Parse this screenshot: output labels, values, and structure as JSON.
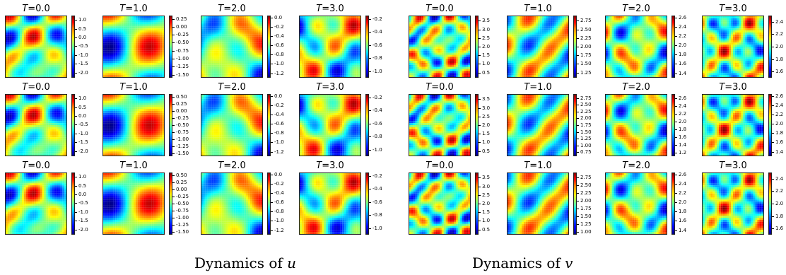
{
  "figure": {
    "captions": [
      {
        "text": "Dynamics of",
        "variable": "u"
      },
      {
        "text": "Dynamics of",
        "variable": "v"
      }
    ],
    "time_var": "T",
    "groups": [
      {
        "variable": "u",
        "rows": [
          [
            {
              "time": "0.0",
              "ticks": [
                "1.0",
                "0.5",
                "0.0",
                "-0.5",
                "-1.0",
                "-1.5",
                "-2.0"
              ],
              "range": [
                -2.3,
                1.25
              ],
              "pattern": 0
            },
            {
              "time": "1.0",
              "ticks": [
                "0.25",
                "0.00",
                "-0.25",
                "-0.50",
                "-0.75",
                "-1.00",
                "-1.25",
                "-1.50"
              ],
              "range": [
                -1.6,
                0.35
              ],
              "pattern": 1
            },
            {
              "time": "2.0",
              "ticks": [
                "0.0",
                "-0.2",
                "-0.4",
                "-0.6",
                "-0.8",
                "-1.0",
                "-1.2"
              ],
              "range": [
                -1.3,
                0.05
              ],
              "pattern": 2
            },
            {
              "time": "3.0",
              "ticks": [
                "-0.2",
                "-0.4",
                "-0.6",
                "-0.8",
                "-1.0"
              ],
              "range": [
                -1.1,
                -0.15
              ],
              "pattern": 3
            }
          ],
          [
            {
              "time": "0.0",
              "ticks": [
                "1.0",
                "0.5",
                "0.0",
                "-0.5",
                "-1.0",
                "-1.5",
                "-2.0"
              ],
              "range": [
                -2.3,
                1.25
              ],
              "pattern": 0
            },
            {
              "time": "1.0",
              "ticks": [
                "0.50",
                "0.25",
                "0.00",
                "-0.25",
                "-0.50",
                "-0.75",
                "-1.00",
                "-1.25",
                "-1.50"
              ],
              "range": [
                -1.6,
                0.6
              ],
              "pattern": 1
            },
            {
              "time": "2.0",
              "ticks": [
                "0.0",
                "-0.2",
                "-0.4",
                "-0.6",
                "-0.8",
                "-1.0",
                "-1.2"
              ],
              "range": [
                -1.3,
                0.05
              ],
              "pattern": 2
            },
            {
              "time": "3.0",
              "ticks": [
                "-0.2",
                "-0.4",
                "-0.6",
                "-0.8",
                "-1.0"
              ],
              "range": [
                -1.1,
                -0.15
              ],
              "pattern": 3
            }
          ],
          [
            {
              "time": "0.0",
              "ticks": [
                "1.0",
                "0.5",
                "0.0",
                "-0.5",
                "-1.0",
                "-1.5",
                "-2.0"
              ],
              "range": [
                -2.3,
                1.25
              ],
              "pattern": 0
            },
            {
              "time": "1.0",
              "ticks": [
                "0.50",
                "0.25",
                "0.00",
                "-0.25",
                "-0.50",
                "-0.75",
                "-1.00",
                "-1.25",
                "-1.50"
              ],
              "range": [
                -1.6,
                0.6
              ],
              "pattern": 1
            },
            {
              "time": "2.0",
              "ticks": [
                "0.0",
                "-0.2",
                "-0.4",
                "-0.6",
                "-0.8",
                "-1.0",
                "-1.2"
              ],
              "range": [
                -1.3,
                0.05
              ],
              "pattern": 2
            },
            {
              "time": "3.0",
              "ticks": [
                "-0.2",
                "-0.4",
                "-0.6",
                "-0.8",
                "-1.0"
              ],
              "range": [
                -1.1,
                -0.15
              ],
              "pattern": 3
            }
          ]
        ]
      },
      {
        "variable": "v",
        "rows": [
          [
            {
              "time": "0.0",
              "ticks": [
                "3.5",
                "3.0",
                "2.5",
                "2.0",
                "1.5",
                "1.0",
                "0.5"
              ],
              "range": [
                0.2,
                3.8
              ],
              "pattern": 4
            },
            {
              "time": "1.0",
              "ticks": [
                "2.75",
                "2.50",
                "2.25",
                "2.00",
                "1.75",
                "1.50",
                "1.25"
              ],
              "range": [
                1.1,
                2.9
              ],
              "pattern": 5
            },
            {
              "time": "2.0",
              "ticks": [
                "2.6",
                "2.4",
                "2.2",
                "2.0",
                "1.8",
                "1.6",
                "1.4"
              ],
              "range": [
                1.3,
                2.65
              ],
              "pattern": 6
            },
            {
              "time": "3.0",
              "ticks": [
                "2.4",
                "2.2",
                "2.0",
                "1.8",
                "1.6"
              ],
              "range": [
                1.5,
                2.5
              ],
              "pattern": 7
            }
          ],
          [
            {
              "time": "0.0",
              "ticks": [
                "3.5",
                "3.0",
                "2.5",
                "2.0",
                "1.5",
                "1.0",
                "0.5"
              ],
              "range": [
                0.2,
                3.8
              ],
              "pattern": 4
            },
            {
              "time": "1.0",
              "ticks": [
                "2.75",
                "2.50",
                "2.25",
                "2.00",
                "1.75",
                "1.50",
                "1.25",
                "1.00",
                "0.75"
              ],
              "range": [
                0.6,
                2.9
              ],
              "pattern": 5
            },
            {
              "time": "2.0",
              "ticks": [
                "2.6",
                "2.4",
                "2.2",
                "2.0",
                "1.8",
                "1.6",
                "1.4",
                "1.2"
              ],
              "range": [
                1.1,
                2.7
              ],
              "pattern": 6
            },
            {
              "time": "3.0",
              "ticks": [
                "2.6",
                "2.4",
                "2.2",
                "2.0",
                "1.8",
                "1.6",
                "1.4"
              ],
              "range": [
                1.3,
                2.65
              ],
              "pattern": 7
            }
          ],
          [
            {
              "time": "0.0",
              "ticks": [
                "3.5",
                "3.0",
                "2.5",
                "2.0",
                "1.5",
                "1.0",
                "0.5"
              ],
              "range": [
                0.2,
                3.8
              ],
              "pattern": 4
            },
            {
              "time": "1.0",
              "ticks": [
                "2.75",
                "2.50",
                "2.25",
                "2.00",
                "1.75",
                "1.50",
                "1.25",
                "1.00"
              ],
              "range": [
                0.9,
                2.9
              ],
              "pattern": 5
            },
            {
              "time": "2.0",
              "ticks": [
                "2.6",
                "2.4",
                "2.2",
                "2.0",
                "1.8",
                "1.6",
                "1.4"
              ],
              "range": [
                1.3,
                2.65
              ],
              "pattern": 6
            },
            {
              "time": "3.0",
              "ticks": [
                "2.4",
                "2.2",
                "2.0",
                "1.8",
                "1.6"
              ],
              "range": [
                1.5,
                2.5
              ],
              "pattern": 7
            }
          ]
        ]
      }
    ]
  }
}
